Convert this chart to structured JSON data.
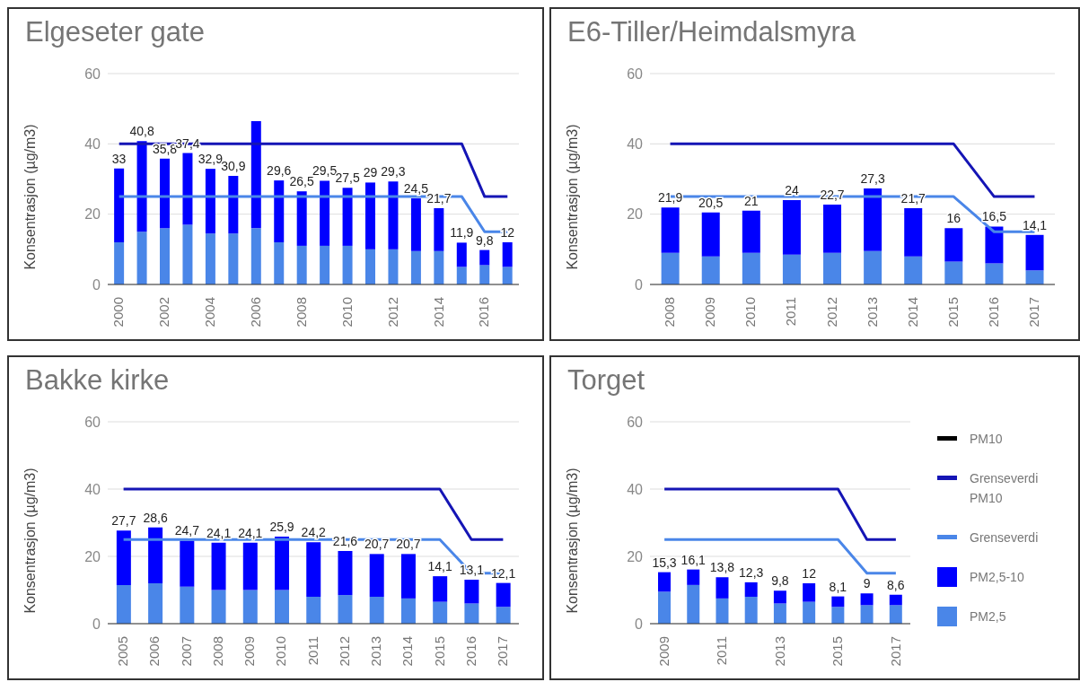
{
  "chart_data": [
    {
      "type": "bar",
      "title": "Elgeseter gate",
      "ylabel": "Konsentrasjon (µg/m3)",
      "stacked": true,
      "grid": "y",
      "ylim": [
        0,
        60
      ],
      "yticks": [
        0,
        20,
        40,
        60
      ],
      "categories": [
        "2000",
        null,
        "2002",
        null,
        "2004",
        null,
        "2006",
        null,
        "2008",
        null,
        "2010",
        null,
        "2012",
        null,
        "2014",
        null,
        "2016",
        null
      ],
      "totals": [
        "33",
        "40,8",
        "35,8",
        "37,4",
        "32,9",
        "30,9",
        null,
        "29,6",
        "26,5",
        "29,5",
        "27,5",
        "29",
        "29,3",
        "24,5",
        "21,7",
        "11,9",
        "9,8",
        "12"
      ],
      "series": [
        {
          "color": "#4a86e8",
          "values": [
            12,
            15,
            16,
            17,
            14.5,
            14.5,
            16,
            12,
            11,
            11,
            11,
            10,
            10,
            9.5,
            9.5,
            5,
            5.5,
            5
          ]
        },
        {
          "color": "#0000ff",
          "values": [
            21,
            25.8,
            19.8,
            20.4,
            18.4,
            16.4,
            30.5,
            17.6,
            15.5,
            18.5,
            16.5,
            19,
            19.3,
            15,
            12.2,
            6.9,
            4.3,
            7
          ]
        },
        {
          "type": "line",
          "color": "#4a86e8",
          "values": [
            25,
            25,
            25,
            25,
            25,
            25,
            25,
            25,
            25,
            25,
            25,
            25,
            25,
            25,
            25,
            25,
            15,
            15
          ]
        },
        {
          "type": "line",
          "color": "#1515b5",
          "values": [
            40,
            40,
            40,
            40,
            40,
            40,
            40,
            40,
            40,
            40,
            40,
            40,
            40,
            40,
            40,
            40,
            25,
            25
          ]
        }
      ]
    },
    {
      "type": "bar",
      "title": "E6-Tiller/Heimdalsmyra",
      "ylabel": "Konsentrasjon (µg/m3)",
      "stacked": true,
      "grid": "y",
      "ylim": [
        0,
        60
      ],
      "yticks": [
        0,
        20,
        40,
        60
      ],
      "categories": [
        "2008",
        "2009",
        "2010",
        "2011",
        "2012",
        "2013",
        "2014",
        "2015",
        "2016",
        "2017"
      ],
      "totals": [
        "21,9",
        "20,5",
        "21",
        "24",
        "22,7",
        "27,3",
        "21,7",
        "16",
        "16,5",
        "14,1"
      ],
      "series": [
        {
          "color": "#4a86e8",
          "values": [
            9,
            8,
            9,
            8.5,
            9,
            9.5,
            8,
            6.5,
            6,
            4
          ]
        },
        {
          "color": "#0000ff",
          "values": [
            12.9,
            12.5,
            12,
            15.5,
            13.7,
            17.8,
            13.7,
            9.5,
            10.5,
            10.1
          ]
        },
        {
          "type": "line",
          "color": "#4a86e8",
          "values": [
            25,
            25,
            25,
            25,
            25,
            25,
            25,
            25,
            15,
            15
          ]
        },
        {
          "type": "line",
          "color": "#1515b5",
          "values": [
            40,
            40,
            40,
            40,
            40,
            40,
            40,
            40,
            25,
            25
          ]
        }
      ]
    },
    {
      "type": "bar",
      "title": "Bakke kirke",
      "ylabel": "Konsentrasjon (µg/m3)",
      "stacked": true,
      "grid": "y",
      "ylim": [
        0,
        60
      ],
      "yticks": [
        0,
        20,
        40,
        60
      ],
      "categories": [
        "2005",
        "2006",
        "2007",
        "2008",
        "2009",
        "2010",
        "2011",
        "2012",
        "2013",
        "2014",
        "2015",
        "2016",
        "2017"
      ],
      "totals": [
        "27,7",
        "28,6",
        "24,7",
        "24,1",
        "24,1",
        "25,9",
        "24,2",
        "21,6",
        "20,7",
        "20,7",
        "14,1",
        "13,1",
        "12,1"
      ],
      "series": [
        {
          "color": "#4a86e8",
          "values": [
            11.5,
            12,
            11,
            10,
            10,
            10,
            8,
            8.5,
            8,
            7.5,
            6.5,
            6,
            5
          ]
        },
        {
          "color": "#0000ff",
          "values": [
            16.2,
            16.6,
            13.7,
            14.1,
            14.1,
            15.9,
            16.2,
            13.1,
            12.7,
            13.2,
            7.6,
            7.1,
            7.1
          ]
        },
        {
          "type": "line",
          "color": "#4a86e8",
          "values": [
            25,
            25,
            25,
            25,
            25,
            25,
            25,
            25,
            25,
            25,
            25,
            15,
            15
          ]
        },
        {
          "type": "line",
          "color": "#1515b5",
          "values": [
            40,
            40,
            40,
            40,
            40,
            40,
            40,
            40,
            40,
            40,
            40,
            25,
            25
          ]
        }
      ]
    },
    {
      "type": "bar",
      "title": "Torget",
      "ylabel": "Konsentrasjon (µg/m3)",
      "stacked": true,
      "grid": "y",
      "legend": "right",
      "ylim": [
        0,
        60
      ],
      "yticks": [
        0,
        20,
        40,
        60
      ],
      "categories": [
        "2009",
        null,
        "2011",
        null,
        "2013",
        null,
        "2015",
        null,
        "2017"
      ],
      "totals": [
        "15,3",
        "16,1",
        "13,8",
        "12,3",
        "9,8",
        "12",
        "8,1",
        "9",
        "8,6"
      ],
      "series": [
        {
          "name": "PM2,5",
          "color": "#4a86e8",
          "values": [
            9.5,
            11.5,
            7.5,
            8,
            6,
            6.5,
            5,
            5.5,
            5.5
          ]
        },
        {
          "name": "PM2,5-10",
          "color": "#0000ff",
          "values": [
            5.8,
            4.6,
            6.3,
            4.3,
            3.8,
            5.5,
            3.1,
            3.5,
            3.1
          ]
        },
        {
          "type": "line",
          "name": "Grenseverdi",
          "color": "#4a86e8",
          "values": [
            25,
            25,
            25,
            25,
            25,
            25,
            25,
            15,
            15
          ]
        },
        {
          "type": "line",
          "name": "Grenseverdi PM10",
          "color": "#1515b5",
          "values": [
            40,
            40,
            40,
            40,
            40,
            40,
            40,
            25,
            25
          ]
        },
        {
          "type": "line",
          "name": "PM10",
          "color": "#000000",
          "values": [
            null,
            null,
            null,
            null,
            null,
            null,
            null,
            null,
            null
          ]
        }
      ]
    }
  ]
}
